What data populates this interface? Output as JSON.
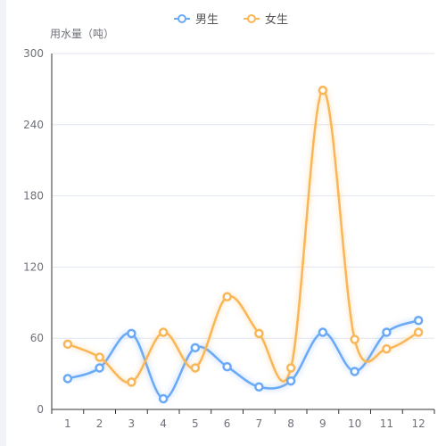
{
  "chart_data": {
    "type": "line",
    "smooth": true,
    "ylabel": "用水量（吨）",
    "xlabel": "",
    "categories": [
      "1",
      "2",
      "3",
      "4",
      "5",
      "6",
      "7",
      "8",
      "9",
      "10",
      "11",
      "12"
    ],
    "ylim": [
      0,
      300
    ],
    "yticks": [
      0,
      60,
      120,
      180,
      240,
      300
    ],
    "grid": true,
    "legend_position": "top-center",
    "series": [
      {
        "name": "男生",
        "color": "#6aa9f7",
        "values": [
          26,
          35,
          64,
          9,
          52,
          36,
          19,
          24,
          65,
          32,
          65,
          75
        ]
      },
      {
        "name": "女生",
        "color": "#f9b657",
        "values": [
          55,
          44,
          23,
          65,
          35,
          95,
          64,
          35,
          269,
          59,
          51,
          65
        ]
      }
    ]
  }
}
